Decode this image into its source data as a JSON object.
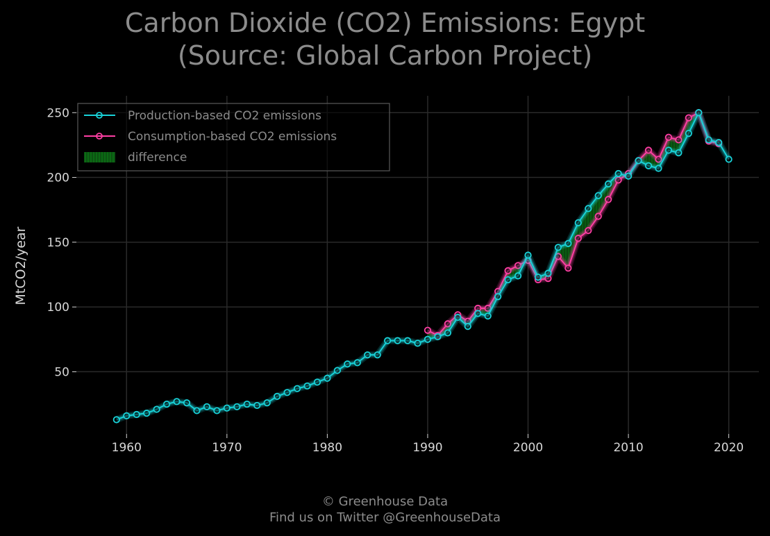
{
  "title": {
    "line1": "Carbon Dioxide (CO2) Emissions: Egypt",
    "line2": "(Source: Global Carbon Project)"
  },
  "credits": {
    "line1": "© Greenhouse Data",
    "line2": "Find us on Twitter @GreenhouseData"
  },
  "colors": {
    "background": "#000000",
    "production": "#19d3d9",
    "consumption": "#ff3fa4",
    "difference": "#0b6b14",
    "grid": "#2a2a2a",
    "text": "#8c8c8c",
    "tick_text": "#d8d8d8"
  },
  "chart_data": {
    "type": "line",
    "title": "Carbon Dioxide (CO2) Emissions: Egypt (Source: Global Carbon Project)",
    "xlabel": "",
    "ylabel": "MtCO2/year",
    "xlim": [
      1955,
      2023
    ],
    "ylim": [
      2,
      263
    ],
    "xticks": [
      1960,
      1970,
      1980,
      1990,
      2000,
      2010,
      2020
    ],
    "yticks": [
      50,
      100,
      150,
      200,
      250
    ],
    "grid": true,
    "legend_position": "top-left",
    "legend": [
      "Production-based CO2 emissions",
      "Consumption-based CO2 emissions",
      "difference"
    ],
    "series": [
      {
        "name": "Production-based CO2 emissions",
        "x": [
          1959,
          1960,
          1961,
          1962,
          1963,
          1964,
          1965,
          1966,
          1967,
          1968,
          1969,
          1970,
          1971,
          1972,
          1973,
          1974,
          1975,
          1976,
          1977,
          1978,
          1979,
          1980,
          1981,
          1982,
          1983,
          1984,
          1985,
          1986,
          1987,
          1988,
          1989,
          1990,
          1991,
          1992,
          1993,
          1994,
          1995,
          1996,
          1997,
          1998,
          1999,
          2000,
          2001,
          2002,
          2003,
          2004,
          2005,
          2006,
          2007,
          2008,
          2009,
          2010,
          2011,
          2012,
          2013,
          2014,
          2015,
          2016,
          2017,
          2018,
          2019,
          2020
        ],
        "values": [
          13,
          16,
          17,
          18,
          21,
          25,
          27,
          26,
          20,
          23,
          20,
          22,
          23,
          25,
          24,
          26,
          31,
          34,
          37,
          39,
          42,
          45,
          51,
          56,
          57,
          63,
          63,
          74,
          74,
          74,
          72,
          75,
          77,
          80,
          92,
          85,
          95,
          93,
          108,
          121,
          124,
          140,
          123,
          126,
          146,
          149,
          165,
          176,
          186,
          195,
          203,
          201,
          213,
          209,
          207,
          221,
          219,
          234,
          250,
          229,
          227,
          214
        ]
      },
      {
        "name": "Consumption-based CO2 emissions",
        "x": [
          1990,
          1991,
          1992,
          1993,
          1994,
          1995,
          1996,
          1997,
          1998,
          1999,
          2000,
          2001,
          2002,
          2003,
          2004,
          2005,
          2006,
          2007,
          2008,
          2009,
          2010,
          2011,
          2012,
          2013,
          2014,
          2015,
          2016,
          2017,
          2018,
          2019
        ],
        "values": [
          82,
          78,
          87,
          94,
          89,
          99,
          99,
          112,
          128,
          132,
          136,
          121,
          122,
          139,
          130,
          153,
          159,
          170,
          183,
          198,
          203,
          213,
          221,
          214,
          231,
          229,
          246,
          250,
          228,
          226
        ]
      }
    ]
  }
}
